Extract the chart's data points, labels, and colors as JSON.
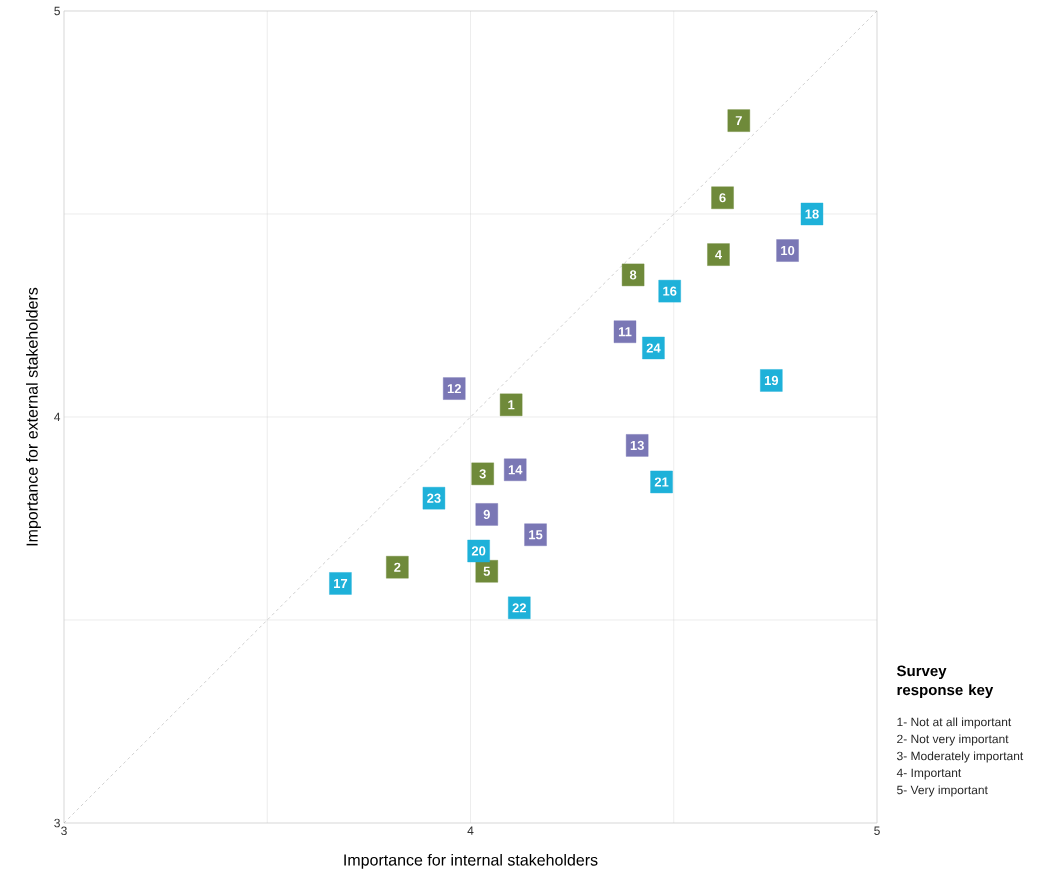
{
  "chart_data": {
    "type": "scatter",
    "xlabel": "Importance for internal stakeholders",
    "ylabel": "Importance for external stakeholders",
    "xlim": [
      3,
      5
    ],
    "ylim": [
      3,
      5
    ],
    "xticks": [
      3,
      {
        "value": 3.5,
        "label": null
      },
      4,
      {
        "value": 4.5,
        "label": null
      },
      5
    ],
    "yticks": [
      3,
      {
        "value": 3.5,
        "label": null
      },
      4,
      {
        "value": 4.5,
        "label": null
      },
      5
    ],
    "grid": true,
    "marker": "square",
    "series": [
      {
        "color": "#6f8a3a",
        "x": [
          4.66,
          4.62,
          4.61,
          4.4,
          4.1,
          4.03,
          3.82,
          4.04
        ],
        "values": [
          4.73,
          4.54,
          4.4,
          4.35,
          4.03,
          3.86,
          3.63,
          3.62
        ]
      },
      {
        "color": "#7a77b5",
        "x": [
          4.78,
          4.38,
          3.96,
          4.41,
          4.11,
          4.04,
          4.16
        ],
        "values": [
          4.41,
          4.21,
          4.07,
          3.93,
          3.87,
          3.76,
          3.71
        ]
      },
      {
        "color": "#1eb1d9",
        "x": [
          4.84,
          4.49,
          4.45,
          4.74,
          4.47,
          3.91,
          4.02,
          3.68,
          4.12
        ],
        "values": [
          4.5,
          4.31,
          4.17,
          4.09,
          3.84,
          3.8,
          3.67,
          3.59,
          3.53
        ]
      },
      {
        "type": "line",
        "color": "#888888",
        "line_style": "dashed",
        "marker": "none",
        "x": [
          3,
          5
        ],
        "values": [
          3,
          5
        ]
      }
    ],
    "annotations": [
      "Survey response key",
      "1- Not at all important",
      "2- Not very important",
      "3- Moderately important",
      "4- Important",
      "5- Very important",
      {
        "text": "7",
        "x": 4.66,
        "y": 4.73
      },
      {
        "text": "6",
        "x": 4.62,
        "y": 4.54
      },
      {
        "text": "4",
        "x": 4.61,
        "y": 4.4
      },
      {
        "text": "8",
        "x": 4.4,
        "y": 4.35
      },
      {
        "text": "1",
        "x": 4.1,
        "y": 4.03
      },
      {
        "text": "3",
        "x": 4.03,
        "y": 3.86
      },
      {
        "text": "2",
        "x": 3.82,
        "y": 3.63
      },
      {
        "text": "5",
        "x": 4.04,
        "y": 3.62
      },
      {
        "text": "10",
        "x": 4.78,
        "y": 4.41
      },
      {
        "text": "11",
        "x": 4.38,
        "y": 4.21
      },
      {
        "text": "12",
        "x": 3.96,
        "y": 4.07
      },
      {
        "text": "13",
        "x": 4.41,
        "y": 3.93
      },
      {
        "text": "14",
        "x": 4.11,
        "y": 3.87
      },
      {
        "text": "9",
        "x": 4.04,
        "y": 3.76
      },
      {
        "text": "15",
        "x": 4.16,
        "y": 3.71
      },
      {
        "text": "18",
        "x": 4.84,
        "y": 4.5
      },
      {
        "text": "16",
        "x": 4.49,
        "y": 4.31
      },
      {
        "text": "24",
        "x": 4.45,
        "y": 4.17
      },
      {
        "text": "19",
        "x": 4.74,
        "y": 4.09
      },
      {
        "text": "21",
        "x": 4.47,
        "y": 3.84
      },
      {
        "text": "23",
        "x": 3.91,
        "y": 3.8
      },
      {
        "text": "20",
        "x": 4.02,
        "y": 3.67
      },
      {
        "text": "17",
        "x": 3.68,
        "y": 3.59
      },
      {
        "text": "22",
        "x": 4.12,
        "y": 3.53
      }
    ]
  }
}
